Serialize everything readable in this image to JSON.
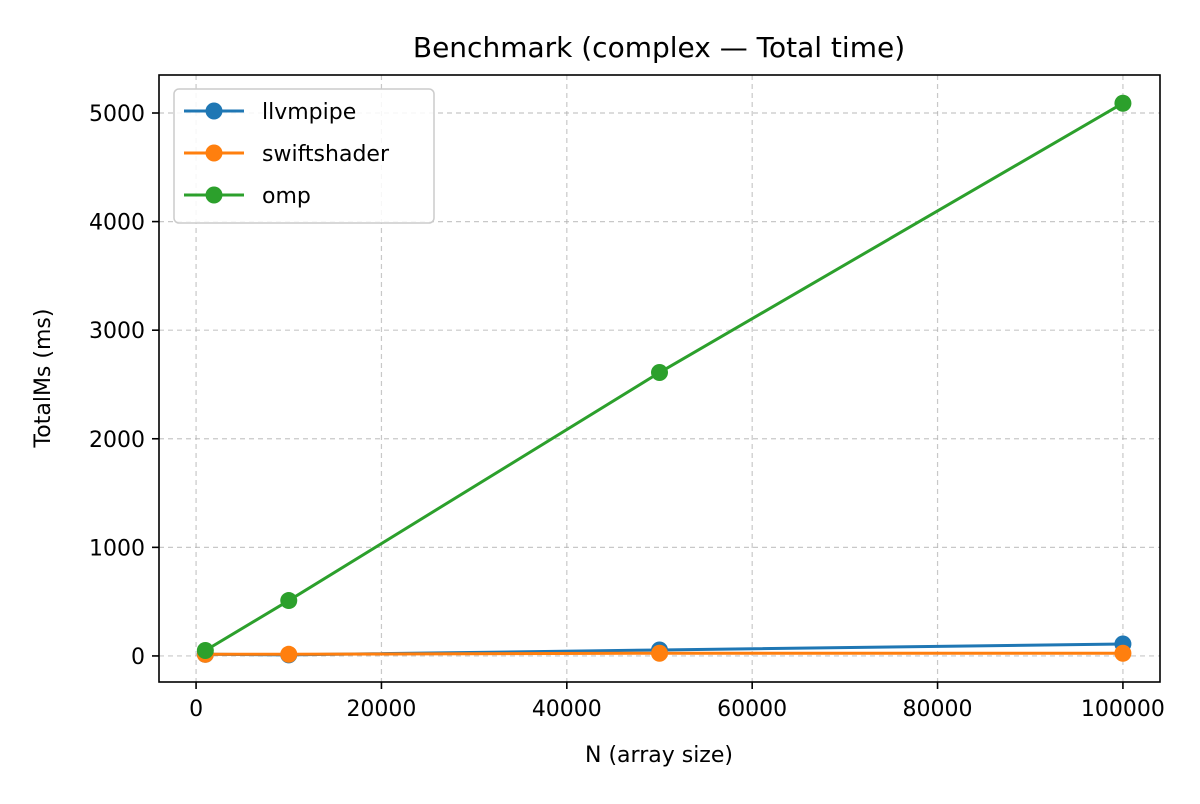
{
  "chart_data": {
    "type": "line",
    "title": "Benchmark (complex — Total time)",
    "xlabel": "N (array size)",
    "ylabel": "TotalMs (ms)",
    "x": [
      1000,
      10000,
      50000,
      100000
    ],
    "xlim": [
      -4000,
      104000
    ],
    "ylim": [
      -240,
      5350
    ],
    "xticks": [
      0,
      20000,
      40000,
      60000,
      80000,
      100000
    ],
    "yticks": [
      0,
      1000,
      2000,
      3000,
      4000,
      5000
    ],
    "grid": true,
    "legend_position": "top-left",
    "series": [
      {
        "name": "llvmpipe",
        "color": "#1f77b4",
        "values": [
          15,
          10,
          55,
          110
        ]
      },
      {
        "name": "swiftshader",
        "color": "#ff7f0e",
        "values": [
          15,
          15,
          25,
          25
        ]
      },
      {
        "name": "omp",
        "color": "#2ca02c",
        "values": [
          50,
          510,
          2610,
          5090
        ]
      }
    ]
  }
}
